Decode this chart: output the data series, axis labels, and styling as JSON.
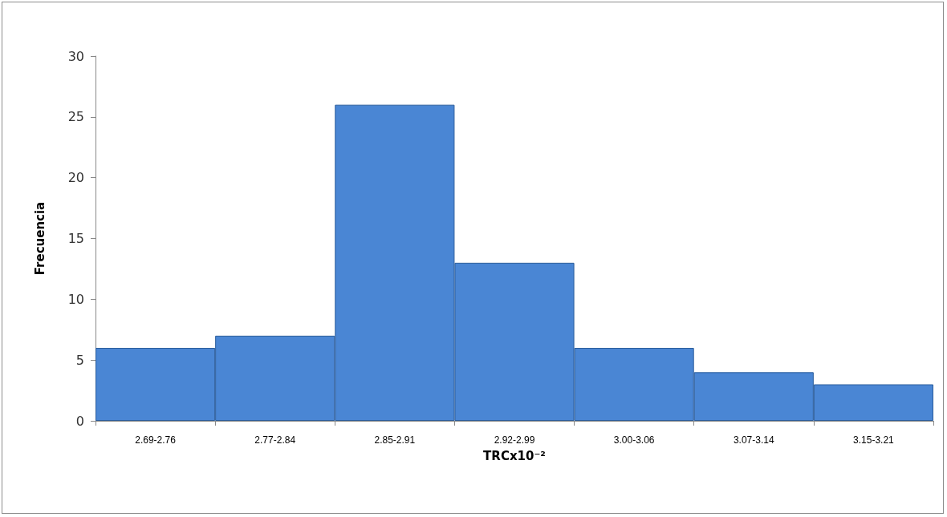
{
  "chart_data": {
    "type": "bar",
    "categories": [
      "2.69-2.76",
      "2.77-2.84",
      "2.85-2.91",
      "2.92-2.99",
      "3.00-3.06",
      "3.07-3.14",
      "3.15-3.21"
    ],
    "values": [
      6,
      7,
      26,
      13,
      6,
      4,
      3
    ],
    "color": "#4a86d4",
    "xlabel": "TRCx10⁻²",
    "ylabel": "Frecuencia",
    "ylim": [
      0,
      30
    ],
    "yticks": [
      0,
      5,
      10,
      15,
      20,
      25,
      30
    ],
    "grid": false
  }
}
